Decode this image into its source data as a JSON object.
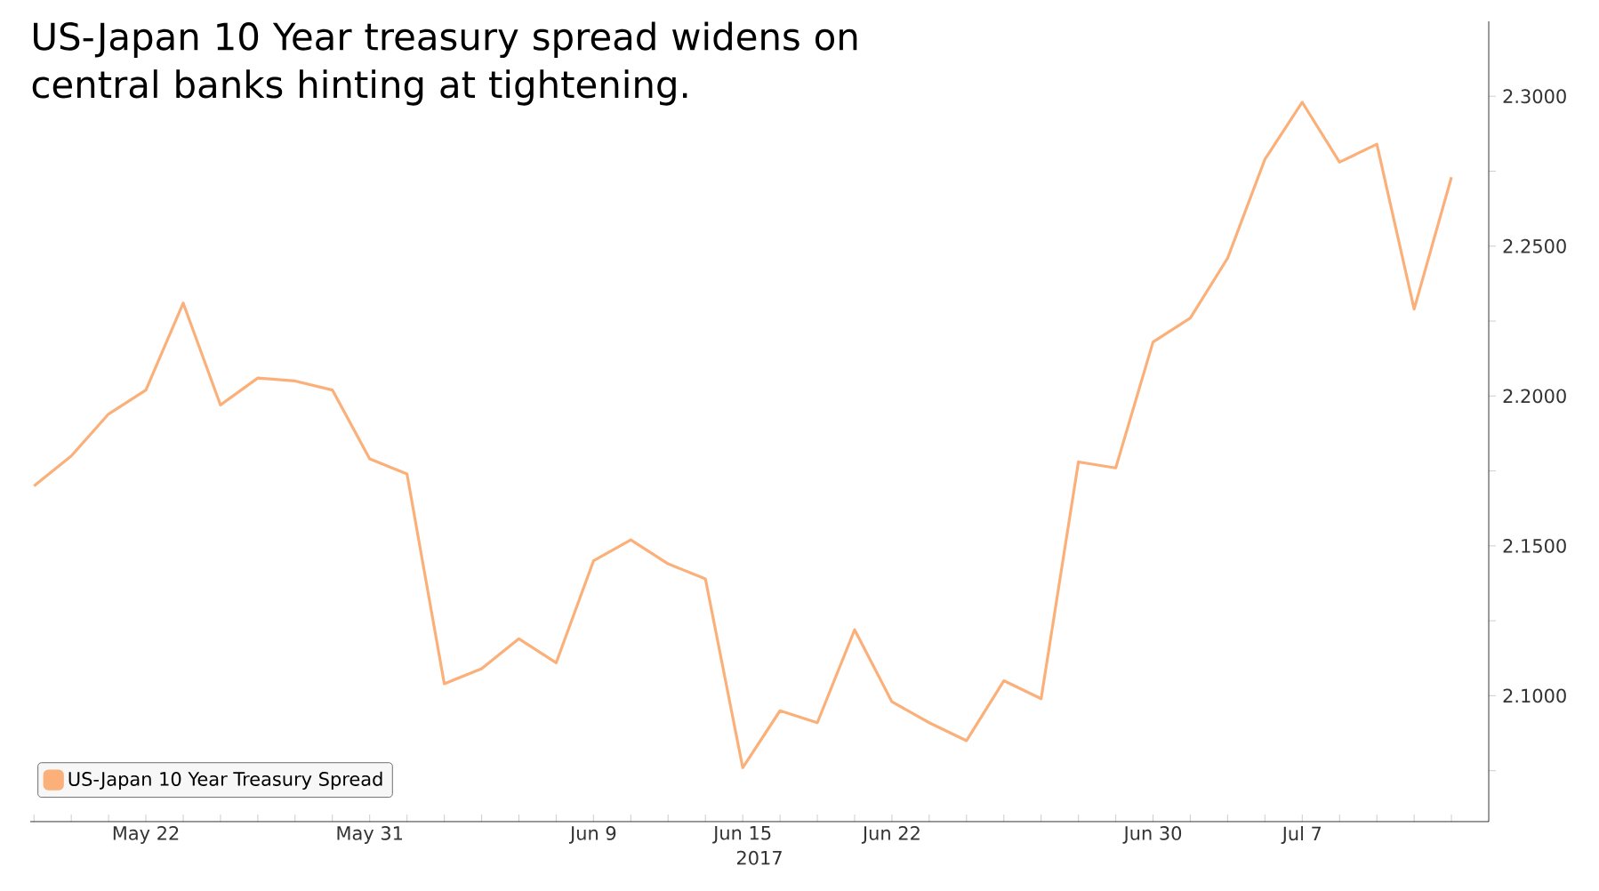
{
  "chart_data": {
    "type": "line",
    "title": "US-Japan 10 Year treasury spread widens on central banks hinting at tightening.",
    "xlabel": "2017",
    "categories": [
      null,
      null,
      null,
      "May 22",
      null,
      null,
      null,
      null,
      null,
      "May 31",
      null,
      null,
      null,
      null,
      null,
      "Jun 9",
      null,
      null,
      null,
      "Jun 15",
      null,
      null,
      null,
      "Jun 22",
      null,
      null,
      null,
      null,
      null,
      null,
      "Jun 30",
      null,
      null,
      null,
      "Jul 7",
      null,
      null,
      null,
      null
    ],
    "series": [
      {
        "name": "US-Japan 10 Year Treasury Spread",
        "color": "#fbb07a",
        "values": [
          2.17,
          2.18,
          2.194,
          2.202,
          2.231,
          2.197,
          2.206,
          2.205,
          2.202,
          2.179,
          2.174,
          2.104,
          2.109,
          2.119,
          2.111,
          2.145,
          2.152,
          2.144,
          2.139,
          2.076,
          2.095,
          2.091,
          2.122,
          2.098,
          2.091,
          2.085,
          2.105,
          2.099,
          2.178,
          2.176,
          2.218,
          2.226,
          2.246,
          2.279,
          2.298,
          2.278,
          2.284,
          2.229,
          2.273
        ]
      }
    ],
    "ylim": [
      2.058,
      2.325
    ],
    "yticks": [
      {
        "value": 2.075,
        "label": null
      },
      {
        "value": 2.1,
        "label": "2.1000"
      },
      {
        "value": 2.125,
        "label": null
      },
      {
        "value": 2.15,
        "label": "2.1500"
      },
      {
        "value": 2.175,
        "label": null
      },
      {
        "value": 2.2,
        "label": "2.2000"
      },
      {
        "value": 2.225,
        "label": null
      },
      {
        "value": 2.25,
        "label": "2.2500"
      },
      {
        "value": 2.275,
        "label": null
      },
      {
        "value": 2.3,
        "label": "2.3000"
      }
    ],
    "legend": "bottom left",
    "grid": false,
    "marker": "none",
    "line_style": "solid"
  }
}
